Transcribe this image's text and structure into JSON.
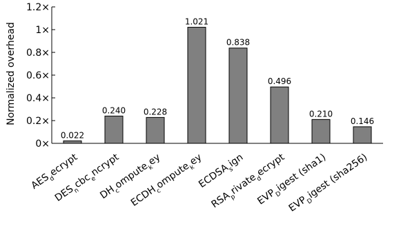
{
  "chart_data": {
    "type": "bar",
    "title": "",
    "xlabel": "",
    "ylabel": "Normalized overhead",
    "ylim": [
      0,
      1.2
    ],
    "yticks": [
      {
        "value": 0,
        "label": "0×"
      },
      {
        "value": 0.2,
        "label": "0.2×"
      },
      {
        "value": 0.4,
        "label": "0.4×"
      },
      {
        "value": 0.6,
        "label": "0.6×"
      },
      {
        "value": 0.8,
        "label": "0.8×"
      },
      {
        "value": 1.0,
        "label": "1×"
      },
      {
        "value": 1.2,
        "label": "1.2×"
      }
    ],
    "grid": false,
    "legend": "none",
    "bar_color": "#808080",
    "categories": [
      {
        "label": [
          [
            "AES",
            false
          ],
          [
            "d",
            true
          ],
          [
            "ecrypt",
            false
          ]
        ]
      },
      {
        "label": [
          [
            "DES",
            false
          ],
          [
            "n",
            true
          ],
          [
            "cbc",
            false
          ],
          [
            "e",
            true
          ],
          [
            "ncrypt",
            false
          ]
        ]
      },
      {
        "label": [
          [
            "DH",
            false
          ],
          [
            "c",
            true
          ],
          [
            "ompute",
            false
          ],
          [
            "k",
            true
          ],
          [
            "ey",
            false
          ]
        ]
      },
      {
        "label": [
          [
            "ECDH",
            false
          ],
          [
            "c",
            true
          ],
          [
            "ompute",
            false
          ],
          [
            "k",
            true
          ],
          [
            "ey",
            false
          ]
        ]
      },
      {
        "label": [
          [
            "ECDSA",
            false
          ],
          [
            "s",
            true
          ],
          [
            "ign",
            false
          ]
        ]
      },
      {
        "label": [
          [
            "RSA",
            false
          ],
          [
            "p",
            true
          ],
          [
            "rivate",
            false
          ],
          [
            "d",
            true
          ],
          [
            "ecrypt",
            false
          ]
        ]
      },
      {
        "label": [
          [
            "EVP",
            false
          ],
          [
            "D",
            true
          ],
          [
            "igest (sha1)",
            false
          ]
        ]
      },
      {
        "label": [
          [
            "EVP",
            false
          ],
          [
            "D",
            true
          ],
          [
            "igest (sha256)",
            false
          ]
        ]
      }
    ],
    "values": [
      0.022,
      0.24,
      0.228,
      1.021,
      0.838,
      0.496,
      0.21,
      0.146
    ],
    "value_labels": [
      "0.022",
      "0.240",
      "0.228",
      "1.021",
      "0.838",
      "0.496",
      "0.210",
      "0.146"
    ]
  }
}
